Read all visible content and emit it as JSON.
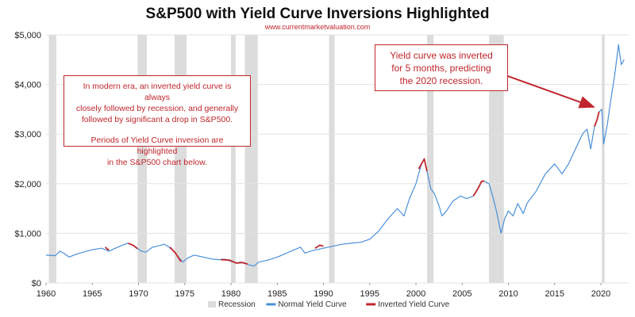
{
  "header": {
    "title": "S&P500 with Yield Curve Inversions Highlighted",
    "subtitle": "www.currentmarketvaluation.com"
  },
  "annotations": {
    "left_line1": "In modern era, an inverted yield curve is always",
    "left_line2": "closely followed by recession, and generally",
    "left_line3": "followed by significant a drop in S&P500.",
    "left_line4": "Periods of Yield Curve inversion are highlighted",
    "left_line5": "in the S&P500 chart below.",
    "right_line1": "Yield curve was inverted",
    "right_line2": "for 5 months, predicting",
    "right_line3": "the 2020 recession."
  },
  "colors": {
    "normal": "#4a90d9",
    "inverted": "#c0262c",
    "recession": "#dcdcdc",
    "grid": "#e3e3e3",
    "arrow": "#c0262c"
  },
  "chart_data": {
    "type": "line",
    "title": "S&P500 with Yield Curve Inversions Highlighted",
    "xlim": [
      1960,
      2023
    ],
    "ylim": [
      0,
      5000
    ],
    "grid": true,
    "legend_position": "bottom",
    "x_ticks": [
      "1960",
      "1965",
      "1970",
      "1975",
      "1980",
      "1985",
      "1990",
      "1995",
      "2000",
      "2005",
      "2010",
      "2015",
      "2020"
    ],
    "y_ticks": [
      {
        "value": 0,
        "label": "$0"
      },
      {
        "value": 1000,
        "label": "$1,000"
      },
      {
        "value": 2000,
        "label": "$2,000"
      },
      {
        "value": 3000,
        "label": "$3,000"
      },
      {
        "value": 4000,
        "label": "$4,000"
      },
      {
        "value": 5000,
        "label": "$5,000"
      }
    ],
    "legend": [
      {
        "name": "Recession",
        "kind": "recession"
      },
      {
        "name": "Normal Yield Curve",
        "kind": "normal"
      },
      {
        "name": "Inverted Yield Curve",
        "kind": "inverted"
      }
    ],
    "recessions": [
      [
        1960.3,
        1961.1
      ],
      [
        1969.9,
        1970.9
      ],
      [
        1973.9,
        1975.2
      ],
      [
        1980.0,
        1980.5
      ],
      [
        1981.5,
        1982.9
      ],
      [
        1990.6,
        1991.2
      ],
      [
        2001.2,
        2001.9
      ],
      [
        2007.9,
        2009.5
      ],
      [
        2020.1,
        2020.4
      ]
    ],
    "series": [
      {
        "name": "Normal Yield Curve",
        "points": [
          [
            1960.0,
            560
          ],
          [
            1961.0,
            550
          ],
          [
            1961.5,
            640
          ],
          [
            1962.0,
            590
          ],
          [
            1962.5,
            520
          ],
          [
            1963.0,
            560
          ],
          [
            1964.0,
            620
          ],
          [
            1965.0,
            670
          ],
          [
            1966.0,
            700
          ],
          [
            1966.8,
            640
          ],
          [
            1967.5,
            700
          ],
          [
            1968.0,
            740
          ],
          [
            1968.8,
            800
          ],
          [
            1969.5,
            750
          ],
          [
            1970.3,
            640
          ],
          [
            1970.8,
            620
          ],
          [
            1971.5,
            720
          ],
          [
            1972.0,
            740
          ],
          [
            1972.8,
            780
          ],
          [
            1973.3,
            720
          ],
          [
            1973.8,
            640
          ],
          [
            1974.5,
            480
          ],
          [
            1974.8,
            420
          ],
          [
            1975.3,
            500
          ],
          [
            1976.0,
            560
          ],
          [
            1977.0,
            520
          ],
          [
            1978.0,
            480
          ],
          [
            1978.7,
            470
          ],
          [
            1979.3,
            480
          ],
          [
            1980.6,
            400
          ],
          [
            1981.0,
            420
          ],
          [
            1981.4,
            410
          ],
          [
            1982.0,
            360
          ],
          [
            1982.5,
            340
          ],
          [
            1983.0,
            420
          ],
          [
            1984.0,
            460
          ],
          [
            1985.0,
            520
          ],
          [
            1986.0,
            600
          ],
          [
            1987.5,
            720
          ],
          [
            1988.0,
            600
          ],
          [
            1988.8,
            650
          ],
          [
            1990.5,
            720
          ],
          [
            1991.0,
            740
          ],
          [
            1992.0,
            780
          ],
          [
            1993.0,
            800
          ],
          [
            1994.0,
            820
          ],
          [
            1995.0,
            880
          ],
          [
            1996.0,
            1050
          ],
          [
            1997.0,
            1300
          ],
          [
            1998.0,
            1500
          ],
          [
            1998.7,
            1350
          ],
          [
            1999.3,
            1700
          ],
          [
            2000.0,
            2000
          ],
          [
            2000.6,
            2400
          ],
          [
            2000.9,
            2500
          ]
        ]
      },
      {
        "name": "Normal Yield Curve",
        "points": [
          [
            2001.2,
            2250
          ],
          [
            2001.6,
            1900
          ],
          [
            2002.0,
            1800
          ],
          [
            2002.5,
            1550
          ],
          [
            2002.8,
            1350
          ],
          [
            2003.3,
            1450
          ],
          [
            2004.0,
            1650
          ],
          [
            2004.8,
            1750
          ],
          [
            2005.5,
            1700
          ],
          [
            2006.2,
            1750
          ]
        ]
      },
      {
        "name": "Normal Yield Curve",
        "points": [
          [
            2007.4,
            2050
          ],
          [
            2007.9,
            2000
          ],
          [
            2008.3,
            1750
          ],
          [
            2008.7,
            1450
          ],
          [
            2009.2,
            1000
          ],
          [
            2009.6,
            1300
          ],
          [
            2010.0,
            1450
          ],
          [
            2010.5,
            1350
          ],
          [
            2011.0,
            1600
          ],
          [
            2011.6,
            1400
          ],
          [
            2012.0,
            1600
          ],
          [
            2013.0,
            1850
          ],
          [
            2014.0,
            2200
          ],
          [
            2015.0,
            2400
          ],
          [
            2015.8,
            2200
          ],
          [
            2016.5,
            2400
          ],
          [
            2017.0,
            2600
          ],
          [
            2018.0,
            3000
          ],
          [
            2018.5,
            3100
          ],
          [
            2018.9,
            2700
          ],
          [
            2019.3,
            3150
          ]
        ]
      },
      {
        "name": "Normal Yield Curve",
        "points": [
          [
            2019.8,
            3450
          ],
          [
            2020.1,
            3500
          ],
          [
            2020.3,
            2800
          ],
          [
            2020.7,
            3200
          ],
          [
            2021.0,
            3600
          ],
          [
            2021.5,
            4200
          ],
          [
            2021.9,
            4800
          ],
          [
            2022.2,
            4400
          ],
          [
            2022.5,
            4500
          ]
        ]
      },
      {
        "name": "Inverted Yield Curve",
        "points": [
          [
            1966.4,
            720
          ],
          [
            1966.8,
            660
          ]
        ]
      },
      {
        "name": "Inverted Yield Curve",
        "points": [
          [
            1968.9,
            800
          ],
          [
            1969.4,
            760
          ],
          [
            1969.9,
            690
          ]
        ]
      },
      {
        "name": "Inverted Yield Curve",
        "points": [
          [
            1973.4,
            720
          ],
          [
            1974.0,
            600
          ],
          [
            1974.6,
            430
          ]
        ]
      },
      {
        "name": "Inverted Yield Curve",
        "points": [
          [
            1978.9,
            470
          ],
          [
            1979.8,
            460
          ],
          [
            1980.6,
            400
          ],
          [
            1981.2,
            410
          ],
          [
            1981.8,
            380
          ]
        ]
      },
      {
        "name": "Inverted Yield Curve",
        "points": [
          [
            1989.1,
            700
          ],
          [
            1989.6,
            760
          ],
          [
            1990.0,
            740
          ]
        ]
      },
      {
        "name": "Inverted Yield Curve",
        "points": [
          [
            2000.3,
            2300
          ],
          [
            2000.6,
            2400
          ],
          [
            2000.9,
            2500
          ],
          [
            2001.2,
            2250
          ]
        ]
      },
      {
        "name": "Inverted Yield Curve",
        "points": [
          [
            2006.2,
            1750
          ],
          [
            2006.7,
            1900
          ],
          [
            2007.1,
            2050
          ],
          [
            2007.4,
            2050
          ]
        ]
      },
      {
        "name": "Inverted Yield Curve",
        "points": [
          [
            2019.3,
            3150
          ],
          [
            2019.6,
            3300
          ],
          [
            2019.8,
            3450
          ]
        ]
      }
    ]
  }
}
